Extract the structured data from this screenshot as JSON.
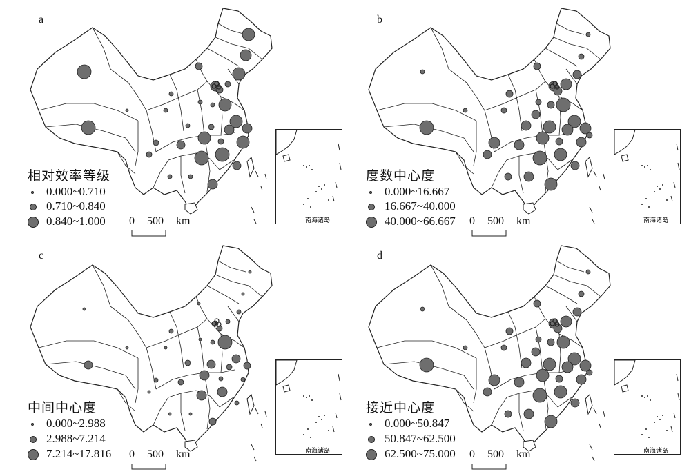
{
  "panels": [
    {
      "id": "a",
      "letter": "a",
      "legend_title": "相对效率等级",
      "classes": [
        "0.000~0.710",
        "0.710~0.840",
        "0.840~1.000"
      ],
      "scale_label": "0 500 km",
      "inset_label": "南海诸岛"
    },
    {
      "id": "b",
      "letter": "b",
      "legend_title": "度数中心度",
      "classes": [
        "0.000~16.667",
        "16.667~40.000",
        "40.000~66.667"
      ],
      "scale_label": "0 500 km",
      "inset_label": "南海诸岛"
    },
    {
      "id": "c",
      "letter": "c",
      "legend_title": "中间中心度",
      "classes": [
        "0.000~2.988",
        "2.988~7.214",
        "7.214~17.816"
      ],
      "scale_label": "0 500 km",
      "inset_label": "南海诸岛"
    },
    {
      "id": "d",
      "letter": "d",
      "legend_title": "接近中心度",
      "classes": [
        "0.000~50.847",
        "50.847~62.500",
        "62.500~75.000"
      ],
      "scale_label": "0 500 km",
      "inset_label": "南海诸岛"
    }
  ],
  "symbol_fill": "#6e6e6e",
  "outline_color": "#222222"
}
